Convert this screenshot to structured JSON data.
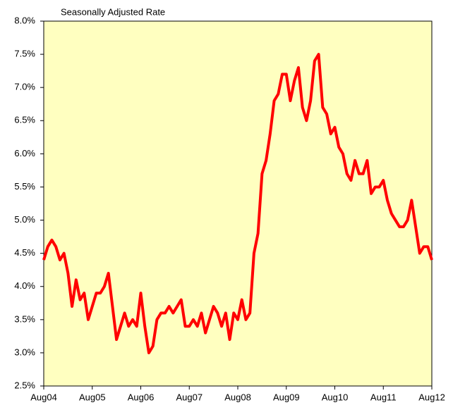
{
  "chart_data": {
    "type": "line",
    "title": "Seasonally Adjusted Rate",
    "categories": [
      "Aug04",
      null,
      null,
      null,
      null,
      null,
      null,
      null,
      null,
      null,
      null,
      null,
      "Aug05",
      null,
      null,
      null,
      null,
      null,
      null,
      null,
      null,
      null,
      null,
      null,
      "Aug06",
      null,
      null,
      null,
      null,
      null,
      null,
      null,
      null,
      null,
      null,
      null,
      "Aug07",
      null,
      null,
      null,
      null,
      null,
      null,
      null,
      null,
      null,
      null,
      null,
      "Aug08",
      null,
      null,
      null,
      null,
      null,
      null,
      null,
      null,
      null,
      null,
      null,
      "Aug09",
      null,
      null,
      null,
      null,
      null,
      null,
      null,
      null,
      null,
      null,
      null,
      "Aug10",
      null,
      null,
      null,
      null,
      null,
      null,
      null,
      null,
      null,
      null,
      null,
      "Aug11",
      null,
      null,
      null,
      null,
      null,
      null,
      null,
      null,
      null,
      null,
      null,
      "Aug12"
    ],
    "series": [
      {
        "color": "#ff0000",
        "values": [
          4.4,
          4.6,
          4.7,
          4.6,
          4.4,
          4.5,
          4.2,
          3.7,
          4.1,
          3.8,
          3.9,
          3.5,
          3.7,
          3.9,
          3.9,
          4.0,
          4.2,
          3.7,
          3.2,
          3.4,
          3.6,
          3.4,
          3.5,
          3.4,
          3.9,
          3.4,
          3.0,
          3.1,
          3.5,
          3.6,
          3.6,
          3.7,
          3.6,
          3.7,
          3.8,
          3.4,
          3.4,
          3.5,
          3.4,
          3.6,
          3.3,
          3.5,
          3.7,
          3.6,
          3.4,
          3.6,
          3.2,
          3.6,
          3.5,
          3.8,
          3.5,
          3.6,
          4.5,
          4.8,
          5.7,
          5.9,
          6.3,
          6.8,
          6.9,
          7.2,
          7.2,
          6.8,
          7.1,
          7.3,
          6.7,
          6.5,
          6.8,
          7.4,
          7.5,
          6.7,
          6.6,
          6.3,
          6.4,
          6.1,
          6.0,
          5.7,
          5.6,
          5.9,
          5.7,
          5.7,
          5.9,
          5.4,
          5.5,
          5.5,
          5.6,
          5.3,
          5.1,
          5.0,
          4.9,
          4.9,
          5.0,
          5.3,
          4.9,
          4.5,
          4.6,
          4.6,
          4.4
        ]
      }
    ],
    "ylim": [
      2.5,
      8.0
    ],
    "yticks": [
      {
        "value": 2.5,
        "label": "2.5%"
      },
      {
        "value": 3.0,
        "label": "3.0%"
      },
      {
        "value": 3.5,
        "label": "3.5%"
      },
      {
        "value": 4.0,
        "label": "4.0%"
      },
      {
        "value": 4.5,
        "label": "4.5%"
      },
      {
        "value": 5.0,
        "label": "5.0%"
      },
      {
        "value": 5.5,
        "label": "5.5%"
      },
      {
        "value": 6.0,
        "label": "6.0%"
      },
      {
        "value": 6.5,
        "label": "6.5%"
      },
      {
        "value": 7.0,
        "label": "7.0%"
      },
      {
        "value": 7.5,
        "label": "7.5%"
      },
      {
        "value": 8.0,
        "label": "8.0%"
      }
    ],
    "plot_background": "#ffffc0"
  }
}
